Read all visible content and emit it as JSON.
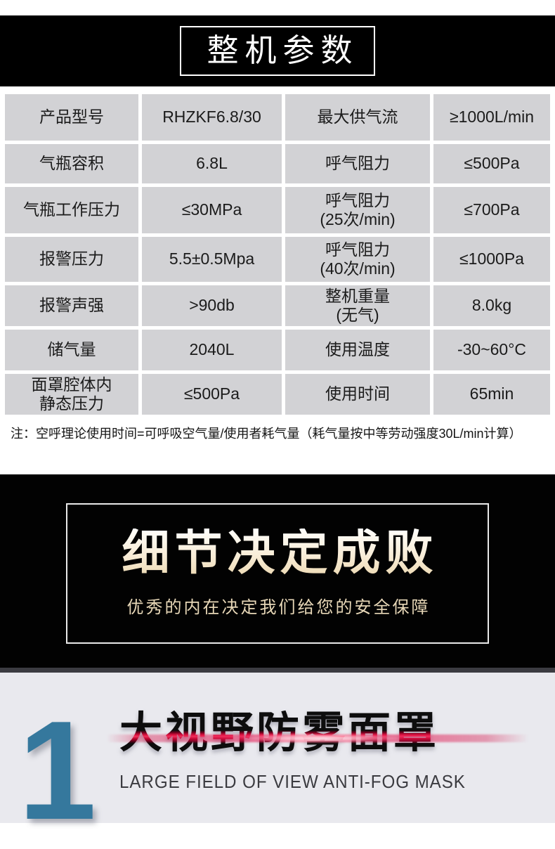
{
  "header": {
    "title": "整机参数"
  },
  "spec_table": {
    "rows": [
      [
        "产品型号",
        "RHZKF6.8/30",
        "最大供气流",
        "≥1000L/min"
      ],
      [
        "气瓶容积",
        "6.8L",
        "呼气阻力",
        "≤500Pa"
      ],
      [
        "气瓶工作压力",
        "≤30MPa",
        "呼气阻力\n(25次/min)",
        "≤700Pa"
      ],
      [
        "报警压力",
        "5.5±0.5Mpa",
        "呼气阻力\n(40次/min)",
        "≤1000Pa"
      ],
      [
        "报警声强",
        ">90db",
        "整机重量\n(无气)",
        "8.0kg"
      ],
      [
        "储气量",
        "2040L",
        "使用温度",
        "-30~60°C"
      ],
      [
        "面罩腔体内\n静态压力",
        "≤500Pa",
        "使用时间",
        "65min"
      ]
    ],
    "note": "注：空呼理论使用时间=可呼吸空气量/使用者耗气量（耗气量按中等劳动强度30L/min计算）"
  },
  "banner": {
    "title": "细节决定成败",
    "subtitle": "优秀的内在决定我们给您的安全保障"
  },
  "feature": {
    "index": "1",
    "title": "大视野防雾面罩",
    "subtitle": "LARGE FIELD OF VIEW ANTI-FOG MASK"
  },
  "colors": {
    "table_cell_bg": "#d2d2d5",
    "banner_bg": "#020202",
    "banner_text_cream": "#e7d7b7",
    "feature_bg": "#e9e9ee",
    "feature_number_blue": "#35789d",
    "accent_red": "#d4062e"
  }
}
